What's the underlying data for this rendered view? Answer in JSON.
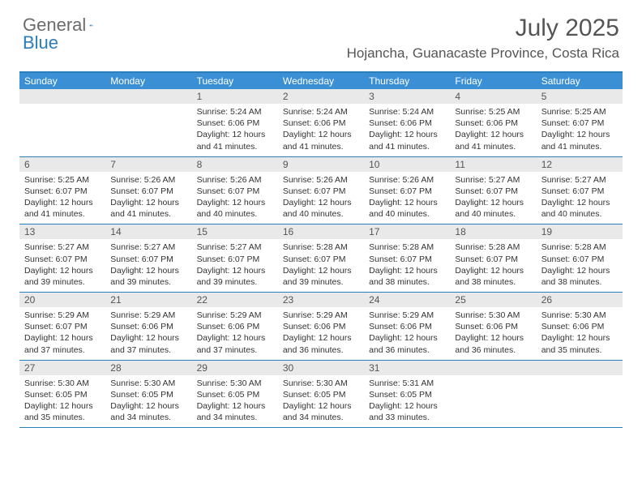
{
  "branding": {
    "word1": "General",
    "word2": "Blue",
    "word1_color": "#6b6b6b",
    "word2_color": "#2a7fba",
    "shape_color": "#2a7fba"
  },
  "header": {
    "month_title": "July 2025",
    "location": "Hojancha, Guanacaste Province, Costa Rica",
    "title_color": "#555555",
    "title_fontsize": 30,
    "location_fontsize": 17
  },
  "style": {
    "header_row_bg": "#3b8fd4",
    "header_row_text": "#ffffff",
    "daynum_bg": "#e9e9e9",
    "daynum_text": "#555555",
    "border_color": "#2a7fba",
    "body_text_color": "#333333",
    "bg": "#ffffff",
    "weekday_fontsize": 12,
    "daynum_fontsize": 12,
    "body_fontsize": 10.5
  },
  "weekdays": [
    "Sunday",
    "Monday",
    "Tuesday",
    "Wednesday",
    "Thursday",
    "Friday",
    "Saturday"
  ],
  "weeks": [
    [
      {
        "empty": true
      },
      {
        "empty": true
      },
      {
        "n": "1",
        "sunrise": "Sunrise: 5:24 AM",
        "sunset": "Sunset: 6:06 PM",
        "day1": "Daylight: 12 hours",
        "day2": "and 41 minutes."
      },
      {
        "n": "2",
        "sunrise": "Sunrise: 5:24 AM",
        "sunset": "Sunset: 6:06 PM",
        "day1": "Daylight: 12 hours",
        "day2": "and 41 minutes."
      },
      {
        "n": "3",
        "sunrise": "Sunrise: 5:24 AM",
        "sunset": "Sunset: 6:06 PM",
        "day1": "Daylight: 12 hours",
        "day2": "and 41 minutes."
      },
      {
        "n": "4",
        "sunrise": "Sunrise: 5:25 AM",
        "sunset": "Sunset: 6:06 PM",
        "day1": "Daylight: 12 hours",
        "day2": "and 41 minutes."
      },
      {
        "n": "5",
        "sunrise": "Sunrise: 5:25 AM",
        "sunset": "Sunset: 6:07 PM",
        "day1": "Daylight: 12 hours",
        "day2": "and 41 minutes."
      }
    ],
    [
      {
        "n": "6",
        "sunrise": "Sunrise: 5:25 AM",
        "sunset": "Sunset: 6:07 PM",
        "day1": "Daylight: 12 hours",
        "day2": "and 41 minutes."
      },
      {
        "n": "7",
        "sunrise": "Sunrise: 5:26 AM",
        "sunset": "Sunset: 6:07 PM",
        "day1": "Daylight: 12 hours",
        "day2": "and 41 minutes."
      },
      {
        "n": "8",
        "sunrise": "Sunrise: 5:26 AM",
        "sunset": "Sunset: 6:07 PM",
        "day1": "Daylight: 12 hours",
        "day2": "and 40 minutes."
      },
      {
        "n": "9",
        "sunrise": "Sunrise: 5:26 AM",
        "sunset": "Sunset: 6:07 PM",
        "day1": "Daylight: 12 hours",
        "day2": "and 40 minutes."
      },
      {
        "n": "10",
        "sunrise": "Sunrise: 5:26 AM",
        "sunset": "Sunset: 6:07 PM",
        "day1": "Daylight: 12 hours",
        "day2": "and 40 minutes."
      },
      {
        "n": "11",
        "sunrise": "Sunrise: 5:27 AM",
        "sunset": "Sunset: 6:07 PM",
        "day1": "Daylight: 12 hours",
        "day2": "and 40 minutes."
      },
      {
        "n": "12",
        "sunrise": "Sunrise: 5:27 AM",
        "sunset": "Sunset: 6:07 PM",
        "day1": "Daylight: 12 hours",
        "day2": "and 40 minutes."
      }
    ],
    [
      {
        "n": "13",
        "sunrise": "Sunrise: 5:27 AM",
        "sunset": "Sunset: 6:07 PM",
        "day1": "Daylight: 12 hours",
        "day2": "and 39 minutes."
      },
      {
        "n": "14",
        "sunrise": "Sunrise: 5:27 AM",
        "sunset": "Sunset: 6:07 PM",
        "day1": "Daylight: 12 hours",
        "day2": "and 39 minutes."
      },
      {
        "n": "15",
        "sunrise": "Sunrise: 5:27 AM",
        "sunset": "Sunset: 6:07 PM",
        "day1": "Daylight: 12 hours",
        "day2": "and 39 minutes."
      },
      {
        "n": "16",
        "sunrise": "Sunrise: 5:28 AM",
        "sunset": "Sunset: 6:07 PM",
        "day1": "Daylight: 12 hours",
        "day2": "and 39 minutes."
      },
      {
        "n": "17",
        "sunrise": "Sunrise: 5:28 AM",
        "sunset": "Sunset: 6:07 PM",
        "day1": "Daylight: 12 hours",
        "day2": "and 38 minutes."
      },
      {
        "n": "18",
        "sunrise": "Sunrise: 5:28 AM",
        "sunset": "Sunset: 6:07 PM",
        "day1": "Daylight: 12 hours",
        "day2": "and 38 minutes."
      },
      {
        "n": "19",
        "sunrise": "Sunrise: 5:28 AM",
        "sunset": "Sunset: 6:07 PM",
        "day1": "Daylight: 12 hours",
        "day2": "and 38 minutes."
      }
    ],
    [
      {
        "n": "20",
        "sunrise": "Sunrise: 5:29 AM",
        "sunset": "Sunset: 6:07 PM",
        "day1": "Daylight: 12 hours",
        "day2": "and 37 minutes."
      },
      {
        "n": "21",
        "sunrise": "Sunrise: 5:29 AM",
        "sunset": "Sunset: 6:06 PM",
        "day1": "Daylight: 12 hours",
        "day2": "and 37 minutes."
      },
      {
        "n": "22",
        "sunrise": "Sunrise: 5:29 AM",
        "sunset": "Sunset: 6:06 PM",
        "day1": "Daylight: 12 hours",
        "day2": "and 37 minutes."
      },
      {
        "n": "23",
        "sunrise": "Sunrise: 5:29 AM",
        "sunset": "Sunset: 6:06 PM",
        "day1": "Daylight: 12 hours",
        "day2": "and 36 minutes."
      },
      {
        "n": "24",
        "sunrise": "Sunrise: 5:29 AM",
        "sunset": "Sunset: 6:06 PM",
        "day1": "Daylight: 12 hours",
        "day2": "and 36 minutes."
      },
      {
        "n": "25",
        "sunrise": "Sunrise: 5:30 AM",
        "sunset": "Sunset: 6:06 PM",
        "day1": "Daylight: 12 hours",
        "day2": "and 36 minutes."
      },
      {
        "n": "26",
        "sunrise": "Sunrise: 5:30 AM",
        "sunset": "Sunset: 6:06 PM",
        "day1": "Daylight: 12 hours",
        "day2": "and 35 minutes."
      }
    ],
    [
      {
        "n": "27",
        "sunrise": "Sunrise: 5:30 AM",
        "sunset": "Sunset: 6:05 PM",
        "day1": "Daylight: 12 hours",
        "day2": "and 35 minutes."
      },
      {
        "n": "28",
        "sunrise": "Sunrise: 5:30 AM",
        "sunset": "Sunset: 6:05 PM",
        "day1": "Daylight: 12 hours",
        "day2": "and 34 minutes."
      },
      {
        "n": "29",
        "sunrise": "Sunrise: 5:30 AM",
        "sunset": "Sunset: 6:05 PM",
        "day1": "Daylight: 12 hours",
        "day2": "and 34 minutes."
      },
      {
        "n": "30",
        "sunrise": "Sunrise: 5:30 AM",
        "sunset": "Sunset: 6:05 PM",
        "day1": "Daylight: 12 hours",
        "day2": "and 34 minutes."
      },
      {
        "n": "31",
        "sunrise": "Sunrise: 5:31 AM",
        "sunset": "Sunset: 6:05 PM",
        "day1": "Daylight: 12 hours",
        "day2": "and 33 minutes."
      },
      {
        "empty": true
      },
      {
        "empty": true
      }
    ]
  ]
}
